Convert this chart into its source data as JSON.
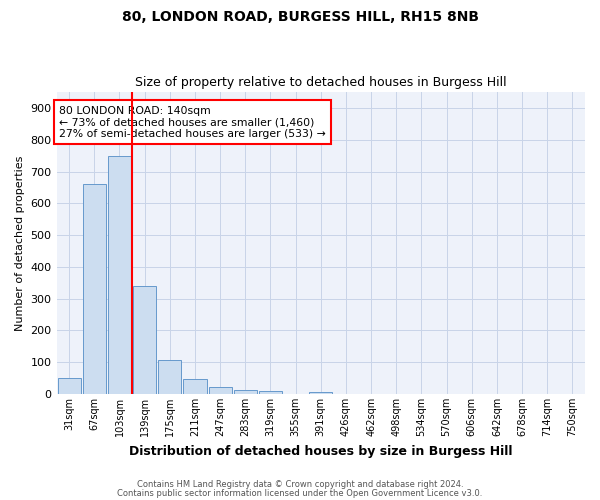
{
  "title1": "80, LONDON ROAD, BURGESS HILL, RH15 8NB",
  "title2": "Size of property relative to detached houses in Burgess Hill",
  "xlabel": "Distribution of detached houses by size in Burgess Hill",
  "ylabel": "Number of detached properties",
  "bar_color": "#ccddf0",
  "bar_edge_color": "#6699cc",
  "categories": [
    "31sqm",
    "67sqm",
    "103sqm",
    "139sqm",
    "175sqm",
    "211sqm",
    "247sqm",
    "283sqm",
    "319sqm",
    "355sqm",
    "391sqm",
    "426sqm",
    "462sqm",
    "498sqm",
    "534sqm",
    "570sqm",
    "606sqm",
    "642sqm",
    "678sqm",
    "714sqm",
    "750sqm"
  ],
  "values": [
    50,
    660,
    750,
    340,
    107,
    48,
    22,
    14,
    10,
    0,
    7,
    0,
    0,
    0,
    0,
    0,
    0,
    0,
    0,
    0,
    0
  ],
  "ylim": [
    0,
    950
  ],
  "yticks": [
    0,
    100,
    200,
    300,
    400,
    500,
    600,
    700,
    800,
    900
  ],
  "marker_bar_index": 3,
  "marker_label": "80 LONDON ROAD: 140sqm",
  "marker_line1": "← 73% of detached houses are smaller (1,460)",
  "marker_line2": "27% of semi-detached houses are larger (533) →",
  "footer1": "Contains HM Land Registry data © Crown copyright and database right 2024.",
  "footer2": "Contains public sector information licensed under the Open Government Licence v3.0.",
  "bg_color": "#eef2fa",
  "grid_color": "#c8d4e8"
}
